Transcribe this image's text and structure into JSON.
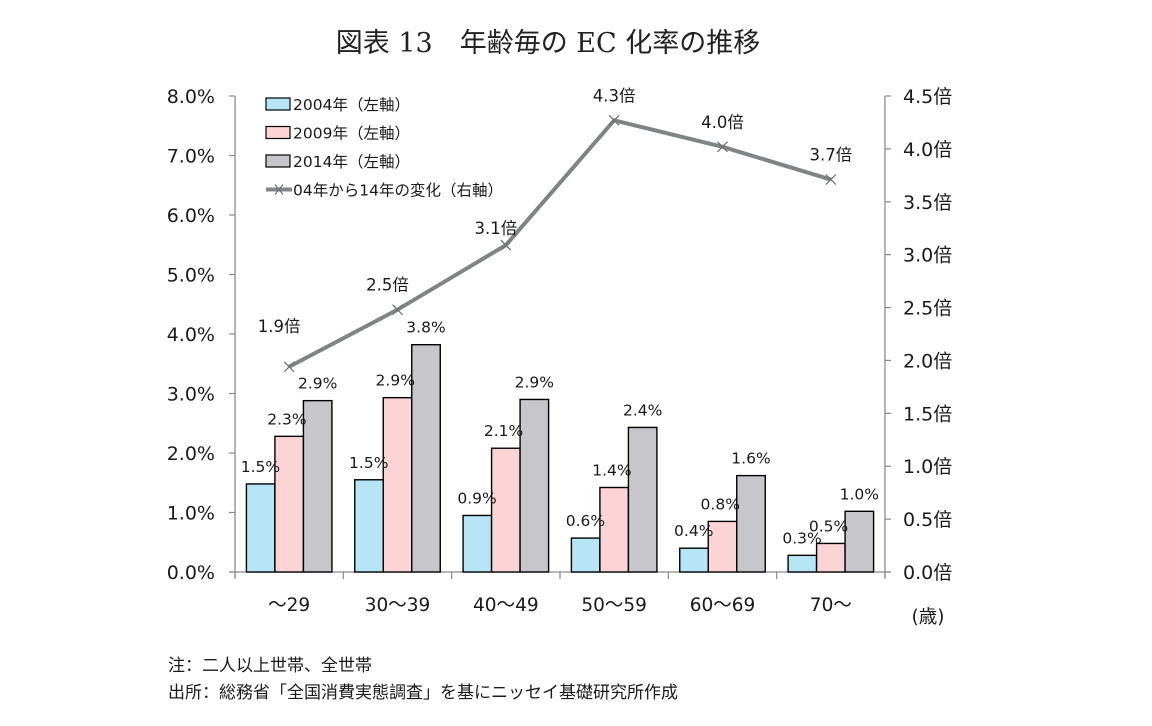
{
  "chart_data": {
    "type": "bar",
    "title": "図表 13　年齢毎の EC 化率の推移",
    "categories": [
      "～29",
      "30～39",
      "40～49",
      "50～59",
      "60～69",
      "70～"
    ],
    "xlabel": "(歳)",
    "ylabel": "",
    "ylim": [
      0,
      8.0
    ],
    "y_ticks": [
      "0.0%",
      "1.0%",
      "2.0%",
      "3.0%",
      "4.0%",
      "5.0%",
      "6.0%",
      "7.0%",
      "8.0%"
    ],
    "y2lim": [
      0,
      4.5
    ],
    "y2_ticks": [
      "0.0倍",
      "0.5倍",
      "1.0倍",
      "1.5倍",
      "2.0倍",
      "2.5倍",
      "3.0倍",
      "3.5倍",
      "4.0倍",
      "4.5倍"
    ],
    "grid": false,
    "legend_position": "top-left",
    "series": [
      {
        "name": "2004年（左軸）",
        "type": "bar",
        "axis": "left",
        "color": "#b6e6f6",
        "values": [
          1.48,
          1.55,
          0.95,
          0.57,
          0.4,
          0.28
        ],
        "labels": [
          "1.5%",
          "1.5%",
          "0.9%",
          "0.6%",
          "0.4%",
          "0.3%"
        ]
      },
      {
        "name": "2009年（左軸）",
        "type": "bar",
        "axis": "left",
        "color": "#fdd4d6",
        "values": [
          2.28,
          2.93,
          2.08,
          1.42,
          0.85,
          0.48
        ],
        "labels": [
          "2.3%",
          "2.9%",
          "2.1%",
          "1.4%",
          "0.8%",
          "0.5%"
        ]
      },
      {
        "name": "2014年（左軸）",
        "type": "bar",
        "axis": "left",
        "color": "#c7c7cb",
        "values": [
          2.88,
          3.82,
          2.9,
          2.43,
          1.62,
          1.02
        ],
        "labels": [
          "2.9%",
          "3.8%",
          "2.9%",
          "2.4%",
          "1.6%",
          "1.0%"
        ]
      },
      {
        "name": "04年から14年の変化（右軸）",
        "type": "line",
        "axis": "right",
        "color": "#808487",
        "values": [
          1.94,
          2.48,
          3.09,
          4.27,
          4.02,
          3.71
        ],
        "labels": [
          "1.9倍",
          "2.5倍",
          "3.1倍",
          "4.3倍",
          "4.0倍",
          "3.7倍"
        ]
      }
    ]
  },
  "notes": {
    "note": "注：二人以上世帯、全世帯",
    "source": "出所：総務省「全国消費実態調査」を基にニッセイ基礎研究所作成"
  }
}
